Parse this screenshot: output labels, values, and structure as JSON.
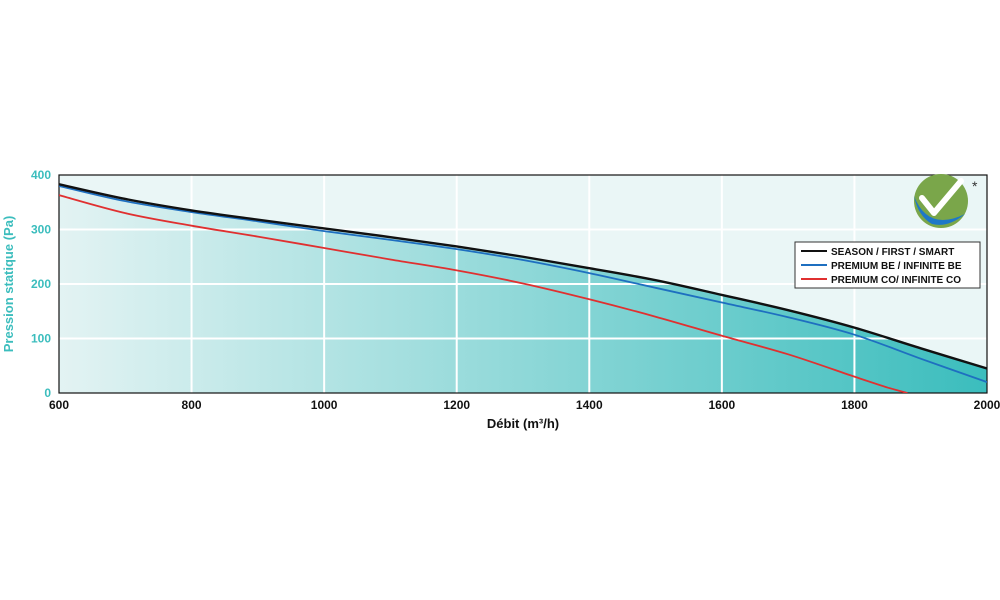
{
  "chart_data": {
    "type": "area",
    "xlabel": "Débit (m³/h)",
    "ylabel": "Pression statique (Pa)",
    "xlim": [
      600,
      2000
    ],
    "ylim": [
      0,
      400
    ],
    "x_ticks": [
      "600",
      "800",
      "1000",
      "1200",
      "1400",
      "1600",
      "1800",
      "2000"
    ],
    "y_ticks": [
      "0",
      "100",
      "200",
      "300",
      "400"
    ],
    "grid": true,
    "legend_position": "right",
    "badge_mark": "*",
    "colors": {
      "fill_start": "#e3f3f3",
      "fill_end": "#3bbdbd",
      "background": "#eaf6f6",
      "ylabel": "#3bbdbd"
    },
    "series": [
      {
        "name": "SEASON / FIRST / SMART",
        "color": "#111111",
        "x": [
          600,
          700,
          800,
          900,
          1000,
          1100,
          1200,
          1300,
          1400,
          1500,
          1600,
          1700,
          1800,
          1900,
          2000
        ],
        "y": [
          383,
          356,
          335,
          318,
          302,
          286,
          269,
          250,
          229,
          207,
          180,
          152,
          120,
          82,
          45
        ]
      },
      {
        "name": "PREMIUM BE / INFINITE BE",
        "color": "#1e6fc0",
        "x": [
          600,
          700,
          800,
          900,
          1000,
          1100,
          1200,
          1300,
          1400,
          1500,
          1600,
          1700,
          1800,
          1900,
          2000
        ],
        "y": [
          380,
          352,
          332,
          315,
          297,
          281,
          264,
          244,
          220,
          193,
          166,
          139,
          107,
          63,
          20
        ]
      },
      {
        "name": "PREMIUM CO/ INFINITE CO",
        "color": "#e03030",
        "x": [
          600,
          700,
          800,
          900,
          1000,
          1100,
          1200,
          1300,
          1400,
          1500,
          1600,
          1700,
          1800,
          1850,
          1880
        ],
        "y": [
          363,
          330,
          307,
          287,
          266,
          245,
          225,
          201,
          172,
          140,
          105,
          71,
          30,
          10,
          0
        ]
      }
    ]
  }
}
